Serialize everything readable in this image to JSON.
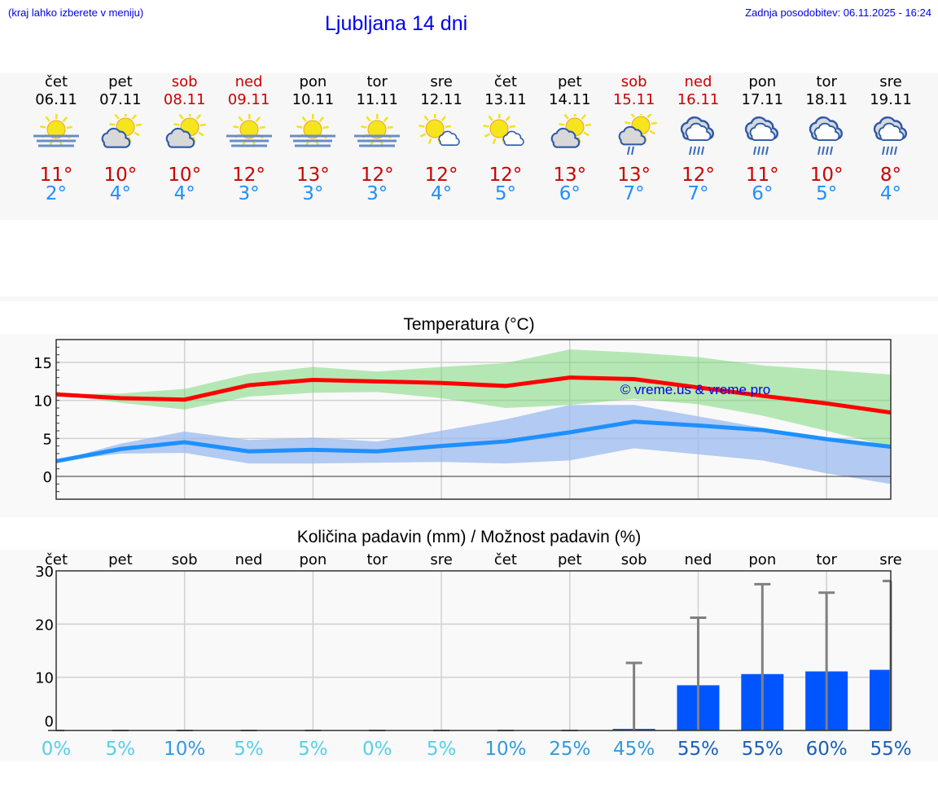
{
  "header": {
    "hint": "(kraj lahko izberete v meniju)",
    "title": "Ljubljana 14 dni",
    "updated": "Zadnja posodobitev: 06.11.2025 - 16:24"
  },
  "days": [
    {
      "name": "čet",
      "date": "06.11",
      "weekend": false,
      "icon": "sun-fog",
      "max": "11°",
      "min": "2°"
    },
    {
      "name": "pet",
      "date": "07.11",
      "weekend": false,
      "icon": "partly-cloudy",
      "max": "10°",
      "min": "4°"
    },
    {
      "name": "sob",
      "date": "08.11",
      "weekend": true,
      "icon": "partly-cloudy",
      "max": "10°",
      "min": "4°"
    },
    {
      "name": "ned",
      "date": "09.11",
      "weekend": true,
      "icon": "sun-fog",
      "max": "12°",
      "min": "3°"
    },
    {
      "name": "pon",
      "date": "10.11",
      "weekend": false,
      "icon": "sun-fog",
      "max": "13°",
      "min": "3°"
    },
    {
      "name": "tor",
      "date": "11.11",
      "weekend": false,
      "icon": "sun-fog",
      "max": "12°",
      "min": "3°"
    },
    {
      "name": "sre",
      "date": "12.11",
      "weekend": false,
      "icon": "sun-small-cloud",
      "max": "12°",
      "min": "4°"
    },
    {
      "name": "čet",
      "date": "13.11",
      "weekend": false,
      "icon": "sun-small-cloud",
      "max": "12°",
      "min": "5°"
    },
    {
      "name": "pet",
      "date": "14.11",
      "weekend": false,
      "icon": "partly-cloudy",
      "max": "13°",
      "min": "6°"
    },
    {
      "name": "sob",
      "date": "15.11",
      "weekend": true,
      "icon": "sun-cloud-rain",
      "max": "13°",
      "min": "7°"
    },
    {
      "name": "ned",
      "date": "16.11",
      "weekend": true,
      "icon": "cloud-rain",
      "max": "12°",
      "min": "7°"
    },
    {
      "name": "pon",
      "date": "17.11",
      "weekend": false,
      "icon": "cloud-rain",
      "max": "11°",
      "min": "6°"
    },
    {
      "name": "tor",
      "date": "18.11",
      "weekend": false,
      "icon": "cloud-rain",
      "max": "10°",
      "min": "5°"
    },
    {
      "name": "sre",
      "date": "19.11",
      "weekend": false,
      "icon": "cloud-rain",
      "max": "8°",
      "min": "4°"
    }
  ],
  "colors": {
    "max_line": "#ff0000",
    "max_band": "#aeeaae",
    "min_line": "#1e90ff",
    "min_band": "#9bb9ef",
    "bar": "#0055ff",
    "error": "#808080",
    "link": "#0000ee"
  },
  "chart_data": [
    {
      "type": "line",
      "title": "Temperatura (°C)",
      "ylim": [
        -3,
        18
      ],
      "yticks": [
        "0",
        "5",
        "10",
        "15"
      ],
      "grid": true,
      "watermark": "© vreme.us & vreme.pro",
      "x": [
        "06.11",
        "07.11",
        "08.11",
        "09.11",
        "10.11",
        "11.11",
        "12.11",
        "13.11",
        "14.11",
        "15.11",
        "16.11",
        "17.11",
        "18.11",
        "19.11"
      ],
      "series": [
        {
          "role": "max",
          "values": [
            10.8,
            10.3,
            10.1,
            12.0,
            12.7,
            12.5,
            12.3,
            11.9,
            13.0,
            12.8,
            11.7,
            10.6,
            9.6,
            8.4
          ],
          "band_high": [
            10.8,
            10.9,
            11.5,
            13.5,
            14.4,
            13.8,
            14.4,
            14.9,
            16.7,
            16.3,
            15.7,
            14.6,
            14.0,
            13.4
          ],
          "band_low": [
            10.8,
            9.7,
            8.8,
            10.5,
            11.0,
            11.1,
            10.3,
            9.0,
            9.4,
            10.2,
            9.5,
            8.0,
            6.0,
            3.9
          ]
        },
        {
          "role": "min",
          "values": [
            2.0,
            3.6,
            4.5,
            3.3,
            3.5,
            3.3,
            4.0,
            4.6,
            5.8,
            7.2,
            6.7,
            6.1,
            4.9,
            3.9
          ],
          "band_high": [
            2.0,
            4.3,
            5.9,
            4.8,
            5.1,
            4.6,
            6.0,
            7.5,
            9.4,
            9.4,
            7.9,
            6.4,
            5.0,
            3.8
          ],
          "band_low": [
            2.0,
            3.0,
            3.1,
            1.7,
            1.7,
            1.8,
            1.9,
            1.7,
            2.1,
            3.7,
            2.9,
            2.1,
            0.4,
            -1.0
          ]
        }
      ]
    },
    {
      "type": "bar",
      "title": "Količina padavin (mm) / Možnost padavin (%)",
      "ylim": [
        0,
        30
      ],
      "yticks": [
        "0",
        "10",
        "20",
        "30"
      ],
      "grid": true,
      "categories": [
        "čet",
        "pet",
        "sob",
        "ned",
        "pon",
        "tor",
        "sre",
        "čet",
        "pet",
        "sob",
        "ned",
        "pon",
        "tor",
        "sre"
      ],
      "values": [
        0,
        0,
        0,
        0,
        0,
        0,
        0,
        0,
        0,
        0.3,
        8.5,
        10.6,
        11.1,
        11.4
      ],
      "error_high": [
        0,
        0,
        0,
        0,
        0,
        0,
        0,
        0,
        0,
        12.7,
        21.2,
        27.5,
        25.9,
        28.1
      ],
      "probability": [
        "0%",
        "5%",
        "10%",
        "5%",
        "5%",
        "0%",
        "5%",
        "10%",
        "25%",
        "45%",
        "55%",
        "55%",
        "60%",
        "55%"
      ]
    }
  ]
}
